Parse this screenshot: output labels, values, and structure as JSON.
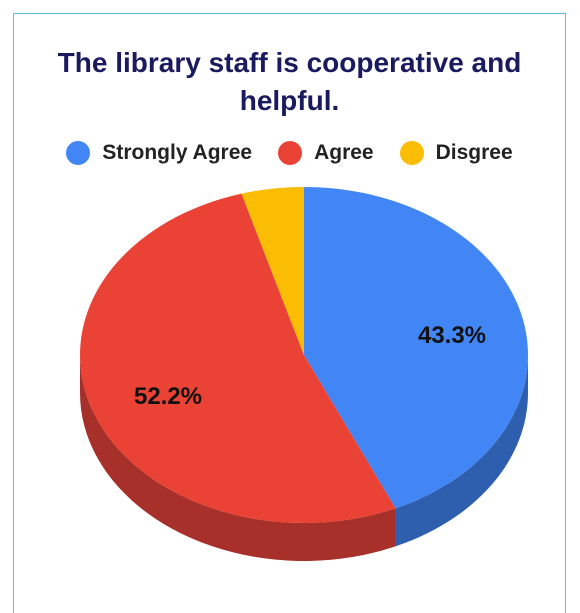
{
  "chart_data": {
    "type": "pie",
    "title": "The library staff is cooperative and helpful.",
    "legend_position": "top",
    "categories": [
      "Strongly Agree",
      "Agree",
      "Disgree"
    ],
    "values": [
      43.3,
      52.2,
      4.5
    ],
    "data_labels": [
      "43.3%",
      "52.2%",
      ""
    ],
    "colors": [
      "#4285f4",
      "#ea4335",
      "#fbbc04"
    ],
    "side_colors": [
      "#2e5fae",
      "#a8302a",
      "#b88a03"
    ]
  }
}
